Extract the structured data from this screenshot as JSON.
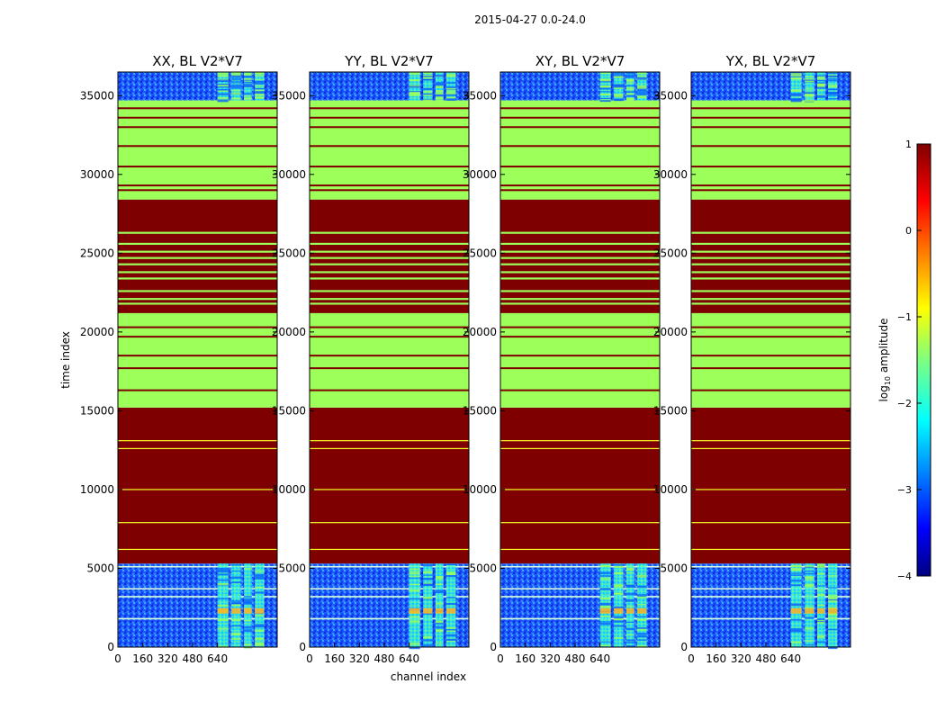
{
  "figure": {
    "suptitle": "2015-04-27 0.0-24.0"
  },
  "colors": {
    "high": "#7f0000",
    "mid": "#9cff5a",
    "noise_low": "#0a2cd8",
    "noise_mid": "#1f7bff",
    "signal": "#33ffd6",
    "signal_hot": "#ffb020",
    "line_yellow": "#f6ff2a"
  },
  "chart_data": {
    "type": "heatmap",
    "xlabel": "channel index",
    "ylabel": "time index",
    "xlim": [
      0,
      1024
    ],
    "ylim": [
      0,
      36500
    ],
    "xticks": [
      0,
      160,
      320,
      480,
      640
    ],
    "xtick_labels": [
      "0",
      "160",
      "320",
      "480",
      "640"
    ],
    "yticks": [
      0,
      5000,
      10000,
      15000,
      20000,
      25000,
      30000,
      35000
    ],
    "ytick_labels": [
      "0",
      "5000",
      "10000",
      "15000",
      "20000",
      "25000",
      "30000",
      "35000"
    ],
    "panels": [
      {
        "title": "XX, BL V2*V7"
      },
      {
        "title": "YY, BL V2*V7"
      },
      {
        "title": "XY, BL V2*V7"
      },
      {
        "title": "YX, BL V2*V7"
      }
    ],
    "bands": [
      {
        "from": 0,
        "to": 5300,
        "fill": "noise"
      },
      {
        "from": 5300,
        "to": 15200,
        "fill": "high"
      },
      {
        "from": 15200,
        "to": 28400,
        "fill": "mid"
      },
      {
        "from": 28400,
        "to": 34700,
        "fill": "mid"
      },
      {
        "from": 34700,
        "to": 36500,
        "fill": "noise"
      }
    ],
    "high_region": {
      "from": 21200,
      "to": 28400
    },
    "thin_lines_in_high": [
      6200,
      7900,
      10000,
      12600,
      13100
    ],
    "thin_lines_in_mid": [
      16300,
      17700,
      18500,
      19700,
      20300,
      21300,
      29000,
      29300,
      30500,
      31800,
      33000,
      33600,
      34200
    ],
    "thin_lines_in_noise": [
      1800,
      3200,
      3700,
      5100
    ],
    "stripes_in_high_mid": [
      21800,
      22100,
      22600,
      23400,
      23800,
      24300,
      24700,
      25100,
      25600,
      26300
    ],
    "signal_channels": [
      [
        640,
        710
      ],
      [
        730,
        790
      ],
      [
        810,
        860
      ],
      [
        880,
        940
      ]
    ],
    "colorbar": {
      "label_prefix": "log",
      "label_sub": "10",
      "label_suffix": " amplitude",
      "min": -4,
      "max": 1,
      "ticks": [
        1,
        0,
        -1,
        -2,
        -3,
        -4
      ],
      "tick_labels": [
        "1",
        "0",
        "−1",
        "−2",
        "−3",
        "−4"
      ],
      "colormap": "jet"
    }
  }
}
